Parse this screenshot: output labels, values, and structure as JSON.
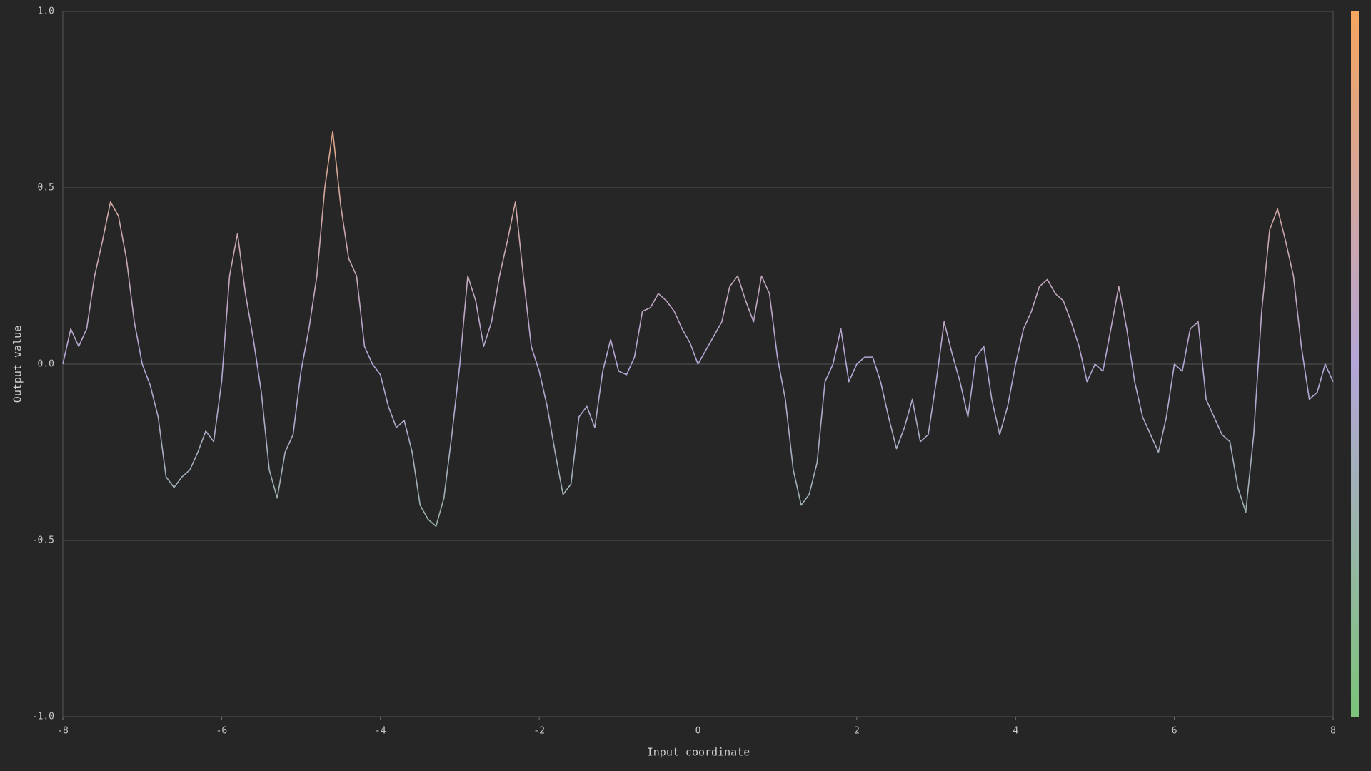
{
  "chart_data": {
    "type": "line",
    "xlabel": "Input coordinate",
    "ylabel": "Output value",
    "x": [
      -8,
      -7.9,
      -7.8,
      -7.7,
      -7.6,
      -7.5,
      -7.4,
      -7.3,
      -7.2,
      -7.1,
      -7,
      -6.9,
      -6.8,
      -6.7,
      -6.6,
      -6.5,
      -6.4,
      -6.3,
      -6.2,
      -6.1,
      -6,
      -5.9,
      -5.8,
      -5.7,
      -5.6,
      -5.5,
      -5.4,
      -5.3,
      -5.2,
      -5.1,
      -5,
      -4.9,
      -4.8,
      -4.7,
      -4.6,
      -4.5,
      -4.4,
      -4.3,
      -4.2,
      -4.1,
      -4,
      -3.9,
      -3.8,
      -3.7,
      -3.6,
      -3.5,
      -3.4,
      -3.3,
      -3.2,
      -3.1,
      -3,
      -2.9,
      -2.8,
      -2.7,
      -2.6,
      -2.5,
      -2.4,
      -2.3,
      -2.2,
      -2.1,
      -2,
      -1.9,
      -1.8,
      -1.7,
      -1.6,
      -1.5,
      -1.4,
      -1.3,
      -1.2,
      -1.1,
      -1,
      -0.9,
      -0.8,
      -0.7,
      -0.6,
      -0.5,
      -0.4,
      -0.3,
      -0.2,
      -0.1,
      0,
      0.1,
      0.2,
      0.3,
      0.4,
      0.5,
      0.6,
      0.7,
      0.8,
      0.9,
      1,
      1.1,
      1.2,
      1.3,
      1.4,
      1.5,
      1.6,
      1.7,
      1.8,
      1.9,
      2,
      2.1,
      2.2,
      2.3,
      2.4,
      2.5,
      2.6,
      2.7,
      2.8,
      2.9,
      3,
      3.1,
      3.2,
      3.3,
      3.4,
      3.5,
      3.6,
      3.7,
      3.8,
      3.9,
      4,
      4.1,
      4.2,
      4.3,
      4.4,
      4.5,
      4.6,
      4.7,
      4.8,
      4.9,
      5,
      5.1,
      5.2,
      5.3,
      5.4,
      5.5,
      5.6,
      5.7,
      5.8,
      5.9,
      6,
      6.1,
      6.2,
      6.3,
      6.4,
      6.5,
      6.6,
      6.7,
      6.8,
      6.9,
      7,
      7.1,
      7.2,
      7.3,
      7.4,
      7.5,
      7.6,
      7.7,
      7.8,
      7.9,
      8
    ],
    "values": [
      0,
      0.1,
      0.05,
      0.1,
      0.25,
      0.35,
      0.46,
      0.42,
      0.3,
      0.12,
      0,
      -0.06,
      -0.15,
      -0.32,
      -0.35,
      -0.32,
      -0.3,
      -0.25,
      -0.19,
      -0.22,
      -0.05,
      0.25,
      0.37,
      0.2,
      0.07,
      -0.08,
      -0.3,
      -0.38,
      -0.25,
      -0.2,
      -0.02,
      0.1,
      0.25,
      0.5,
      0.66,
      0.45,
      0.3,
      0.25,
      0.05,
      0,
      -0.03,
      -0.12,
      -0.18,
      -0.16,
      -0.25,
      -0.4,
      -0.44,
      -0.46,
      -0.38,
      -0.2,
      0,
      0.25,
      0.18,
      0.05,
      0.12,
      0.25,
      0.35,
      0.46,
      0.25,
      0.05,
      -0.02,
      -0.12,
      -0.25,
      -0.37,
      -0.34,
      -0.15,
      -0.12,
      -0.18,
      -0.02,
      0.07,
      -0.02,
      -0.03,
      0.02,
      0.15,
      0.16,
      0.2,
      0.18,
      0.15,
      0.1,
      0.06,
      0,
      0.04,
      0.08,
      0.12,
      0.22,
      0.25,
      0.18,
      0.12,
      0.25,
      0.2,
      0.02,
      -0.1,
      -0.3,
      -0.4,
      -0.37,
      -0.28,
      -0.05,
      0,
      0.1,
      -0.05,
      0,
      0.02,
      0.02,
      -0.05,
      -0.15,
      -0.24,
      -0.18,
      -0.1,
      -0.22,
      -0.2,
      -0.05,
      0.12,
      0.03,
      -0.05,
      -0.15,
      0.02,
      0.05,
      -0.1,
      -0.2,
      -0.12,
      0,
      0.1,
      0.15,
      0.22,
      0.24,
      0.2,
      0.18,
      0.12,
      0.05,
      -0.05,
      0,
      -0.02,
      0.1,
      0.22,
      0.1,
      -0.05,
      -0.15,
      -0.2,
      -0.25,
      -0.15,
      0,
      -0.02,
      0.1,
      0.12,
      -0.1,
      -0.15,
      -0.2,
      -0.22,
      -0.35,
      -0.42,
      -0.2,
      0.15,
      0.38,
      0.44,
      0.35,
      0.25,
      0.05,
      -0.1,
      -0.08,
      0,
      -0.05
    ],
    "colorscale": [
      "#7cc47a",
      "#b4a6d8",
      "#f5a660"
    ],
    "xlim": [
      -8,
      8
    ],
    "xticks": [
      -8,
      -6,
      -4,
      -2,
      0,
      2,
      4,
      6,
      8
    ],
    "ylim": [
      -1,
      1
    ],
    "yticks": [
      {
        "value": -1,
        "label": "-1.0"
      },
      -0.5,
      {
        "value": 0,
        "label": "0.0"
      },
      0.5,
      {
        "value": 1,
        "label": "1.0"
      }
    ],
    "grid": true
  }
}
